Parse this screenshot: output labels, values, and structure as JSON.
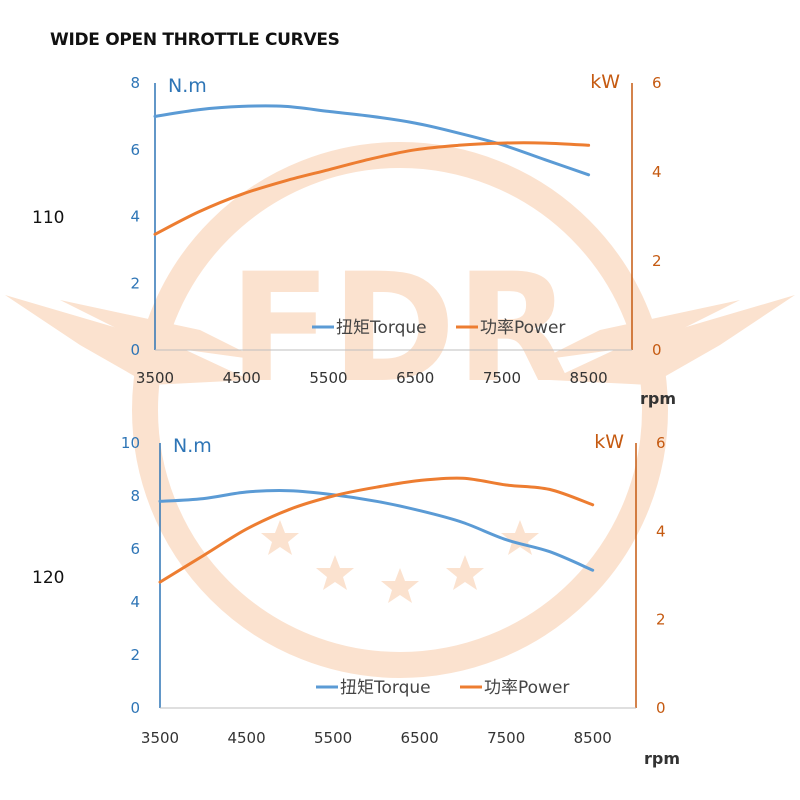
{
  "title": "WIDE OPEN THROTTLE CURVES",
  "colors": {
    "torque": "#5b9bd5",
    "power": "#ed7d31",
    "left_axis": "#2e75b6",
    "right_axis": "#c55a11",
    "watermark": "#fbe2cf"
  },
  "watermark": {
    "text": "FDR"
  },
  "chart_data": [
    {
      "type": "line",
      "model": "110",
      "xlabel": "rpm",
      "ylabel": "N.m",
      "y2label": "kW",
      "xlim": [
        3500,
        9000
      ],
      "ylim": [
        0,
        8
      ],
      "y2lim": [
        0,
        6
      ],
      "x_ticks": [
        3500,
        4500,
        5500,
        6500,
        7500,
        8500
      ],
      "y_ticks": [
        0,
        2,
        4,
        6,
        8
      ],
      "y2_ticks": [
        0,
        2,
        4,
        6
      ],
      "legend_position": "bottom-right",
      "series": [
        {
          "name": "扭矩Torque",
          "axis": "left",
          "color": "#5b9bd5",
          "x": [
            3500,
            4000,
            4500,
            5000,
            5500,
            6000,
            6500,
            7000,
            7500,
            8000,
            8500
          ],
          "values": [
            7.0,
            7.2,
            7.3,
            7.3,
            7.15,
            7.0,
            6.8,
            6.5,
            6.15,
            5.7,
            5.25
          ]
        },
        {
          "name": "功率Power",
          "axis": "right",
          "color": "#ed7d31",
          "x": [
            3500,
            4000,
            4500,
            5000,
            5500,
            6000,
            6500,
            7000,
            7500,
            8000,
            8500
          ],
          "values": [
            2.6,
            3.1,
            3.5,
            3.8,
            4.05,
            4.3,
            4.5,
            4.6,
            4.65,
            4.65,
            4.6
          ]
        }
      ]
    },
    {
      "type": "line",
      "model": "120",
      "xlabel": "rpm",
      "ylabel": "N.m",
      "y2label": "kW",
      "xlim": [
        3500,
        9000
      ],
      "ylim": [
        0,
        10
      ],
      "y2lim": [
        0,
        6
      ],
      "x_ticks": [
        3500,
        4500,
        5500,
        6500,
        7500,
        8500
      ],
      "y_ticks": [
        0,
        2,
        4,
        6,
        8,
        10
      ],
      "y2_ticks": [
        0,
        2,
        4,
        6
      ],
      "legend_position": "bottom-right",
      "series": [
        {
          "name": "扭矩Torque",
          "axis": "left",
          "color": "#5b9bd5",
          "x": [
            3500,
            4000,
            4500,
            5000,
            5500,
            6000,
            6500,
            7000,
            7500,
            8000,
            8500
          ],
          "values": [
            7.8,
            7.9,
            8.15,
            8.2,
            8.05,
            7.8,
            7.45,
            7.0,
            6.35,
            5.9,
            5.2
          ]
        },
        {
          "name": "功率Power",
          "axis": "right",
          "color": "#ed7d31",
          "x": [
            3500,
            4000,
            4500,
            5000,
            5500,
            6000,
            6500,
            7000,
            7500,
            8000,
            8500
          ],
          "values": [
            2.85,
            3.45,
            4.05,
            4.5,
            4.8,
            5.0,
            5.15,
            5.2,
            5.05,
            4.95,
            4.6
          ]
        }
      ]
    }
  ]
}
